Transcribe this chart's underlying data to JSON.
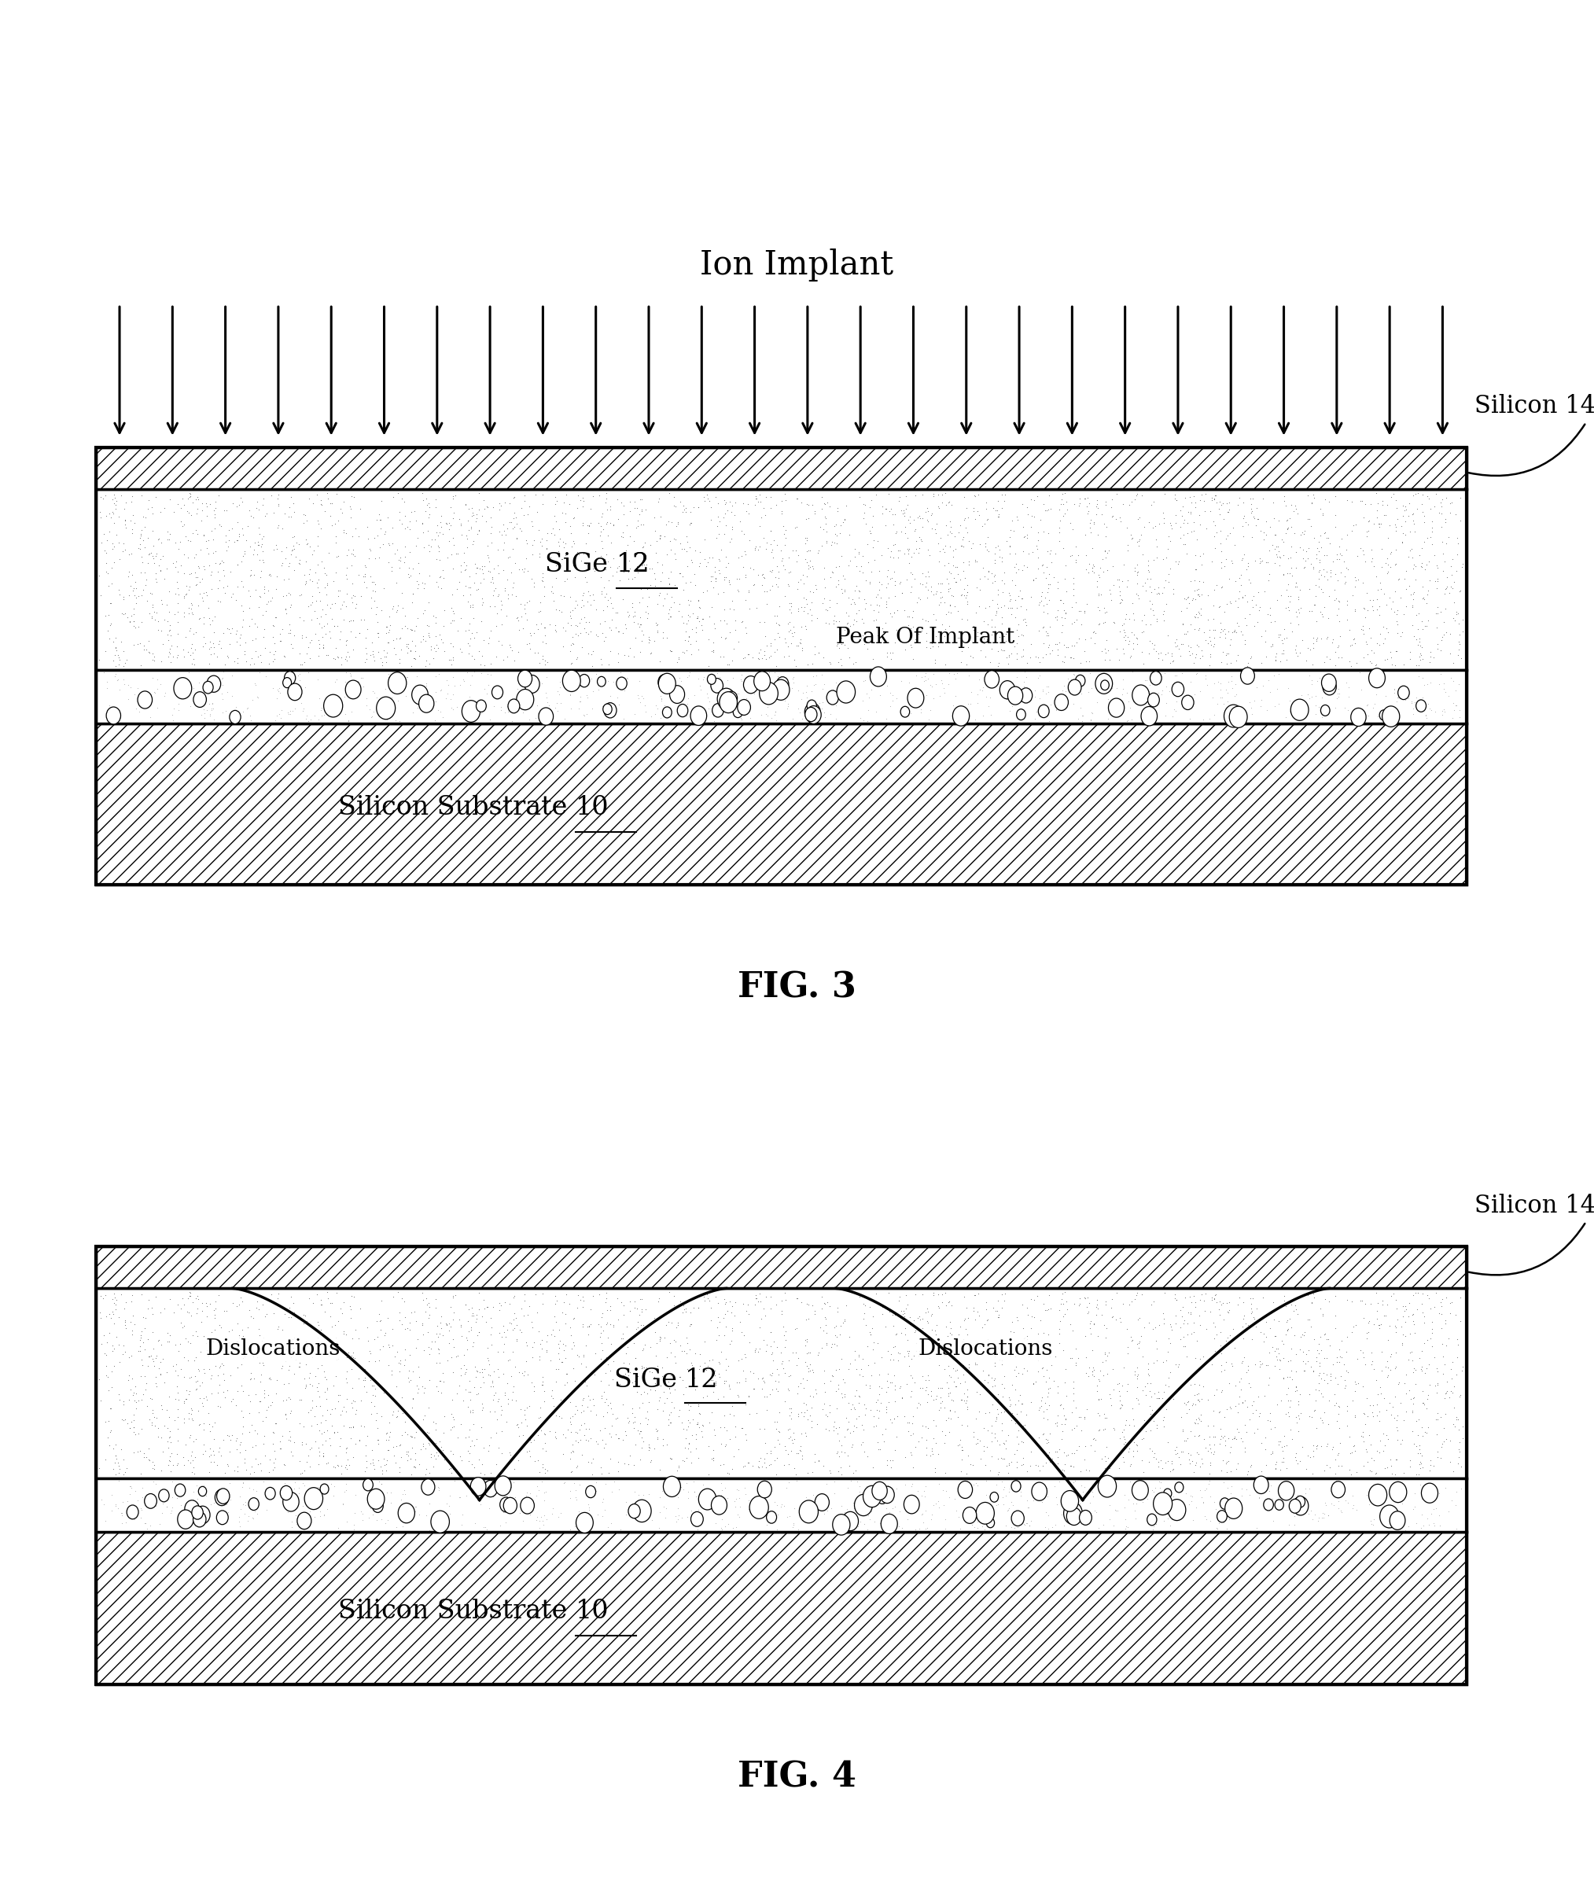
{
  "fig_width": 20.27,
  "fig_height": 24.2,
  "bg_color": "#ffffff",
  "fig3": {
    "title": "Ion Implant",
    "title_fontsize": 30,
    "n_arrows": 26,
    "silicon14_label": "Silicon 14",
    "sige_label": "SiGe 12",
    "peak_label": "Peak Of Implant",
    "substrate_label": "Silicon Substrate 10",
    "fig_label": "FIG. 3"
  },
  "fig4": {
    "silicon14_label": "Silicon 14",
    "sige_label": "SiGe 12",
    "substrate_label": "Silicon Substrate 10",
    "dislocations_label": "Dislocations",
    "fig_label": "FIG. 4"
  }
}
